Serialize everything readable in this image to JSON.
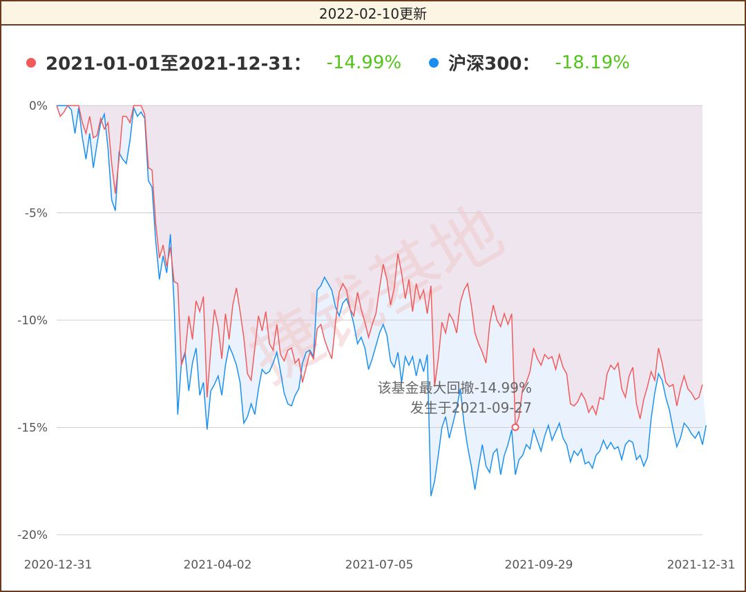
{
  "header": {
    "title": "2022-02-10更新"
  },
  "legend": {
    "fund_label": "2021-01-01至2021-12-31：",
    "fund_value": "-14.99%",
    "index_label": "沪深300：",
    "index_value": "-18.19%"
  },
  "annotation": {
    "line1": "该基金最大回撤-14.99%",
    "line2": "发生于2021-09-27"
  },
  "watermark": "捷钱基地",
  "colors": {
    "fund": "#f05a5a",
    "index": "#1a8ff0",
    "gain": "#52c41a"
  },
  "chart_data": {
    "type": "line",
    "x_ticks": [
      "2020-12-31",
      "2021-04-02",
      "2021-07-05",
      "2021-09-29",
      "2021-12-31"
    ],
    "y_ticks": [
      "0%",
      "-5%",
      "-10%",
      "-15%",
      "-20%"
    ],
    "ylim": [
      -20,
      0
    ],
    "grid": true,
    "legend_position": "top-left",
    "max_drawdown_point": {
      "date": "2021-09-27",
      "value": -14.99
    },
    "series": [
      {
        "name": "2021-01-01至2021-12-31",
        "values": [
          0,
          -0.5,
          -0.3,
          0,
          0,
          0,
          0,
          -0.8,
          -1.3,
          -0.5,
          -1.5,
          -1.4,
          -0.6,
          -1.1,
          -0.8,
          -2.7,
          -4.1,
          -2.5,
          -0.5,
          -0.5,
          -0.8,
          0,
          0,
          0,
          -0.4,
          -2.9,
          -3.0,
          -5.5,
          -7.1,
          -6.5,
          -7.5,
          -6.6,
          -8.2,
          -8.3,
          -12.1,
          -11.6,
          -9.8,
          -10.9,
          -9.1,
          -9.6,
          -8.9,
          -13.6,
          -11.4,
          -9.5,
          -10.3,
          -11.8,
          -9.7,
          -10.9,
          -9.3,
          -8.5,
          -9.6,
          -10.8,
          -12.5,
          -12.8,
          -11.3,
          -9.8,
          -10.5,
          -9.6,
          -11.1,
          -11.4,
          -10.2,
          -11.6,
          -11.9,
          -11.4,
          -11.3,
          -12.0,
          -11.8,
          -12.9,
          -12.2,
          -11.5,
          -11.8,
          -10.4,
          -10.2,
          -10.9,
          -11.4,
          -11.8,
          -10.1,
          -8.7,
          -8.3,
          -8.6,
          -9.5,
          -9.8,
          -8.7,
          -9.5,
          -10.1,
          -10.8,
          -10.2,
          -9.7,
          -8.5,
          -7.4,
          -8.1,
          -9.3,
          -8.5,
          -6.9,
          -7.8,
          -9.0,
          -8.1,
          -9.6,
          -8.3,
          -9.0,
          -8.6,
          -9.7,
          -8.4,
          -13.1,
          -11.8,
          -10.1,
          -10.6,
          -9.7,
          -10.0,
          -10.6,
          -9.2,
          -8.6,
          -8.3,
          -9.3,
          -10.6,
          -11.1,
          -11.5,
          -12.0,
          -10.2,
          -9.3,
          -10.0,
          -10.3,
          -9.7,
          -10.2,
          -9.7,
          -14.99,
          -14.5,
          -13.2,
          -12.9,
          -12.4,
          -11.3,
          -11.8,
          -12.1,
          -11.6,
          -11.8,
          -11.7,
          -12.3,
          -11.6,
          -12.2,
          -12.5,
          -13.9,
          -14.0,
          -13.8,
          -13.4,
          -13.7,
          -14.3,
          -14.0,
          -14.4,
          -13.6,
          -13.7,
          -12.5,
          -12.1,
          -12.3,
          -12.0,
          -13.2,
          -13.6,
          -12.6,
          -12.2,
          -13.9,
          -14.6,
          -13.7,
          -13.1,
          -12.4,
          -12.8,
          -11.3,
          -12.0,
          -12.9,
          -13.1,
          -13.0,
          -14.0,
          -13.2,
          -12.6,
          -13.2,
          -13.4,
          -13.7,
          -13.6,
          -13.0
        ]
      },
      {
        "name": "沪深300",
        "values": [
          0,
          0,
          0,
          0,
          -0.2,
          -1.3,
          -0.1,
          -1.5,
          -2.5,
          -1.3,
          -2.9,
          -1.8,
          -0.8,
          -0.4,
          -2.0,
          -4.4,
          -4.9,
          -2.2,
          -2.5,
          -2.7,
          -1.6,
          -0.1,
          -0.5,
          -0.3,
          -0.6,
          -3.5,
          -3.8,
          -6.3,
          -8.1,
          -7.0,
          -7.8,
          -6.0,
          -9.2,
          -14.4,
          -12.0,
          -11.5,
          -13.3,
          -12.0,
          -11.3,
          -13.5,
          -12.9,
          -15.1,
          -13.3,
          -13.0,
          -12.6,
          -13.5,
          -12.1,
          -11.2,
          -11.6,
          -12.1,
          -12.9,
          -14.8,
          -14.5,
          -13.9,
          -14.4,
          -13.2,
          -12.3,
          -12.5,
          -12.4,
          -12.0,
          -11.5,
          -12.4,
          -13.4,
          -13.9,
          -14.0,
          -13.5,
          -13.2,
          -12.0,
          -11.5,
          -11.4,
          -11.7,
          -8.6,
          -8.4,
          -8.0,
          -8.3,
          -8.6,
          -9.4,
          -9.8,
          -9.2,
          -9.0,
          -9.5,
          -10.2,
          -11.1,
          -10.8,
          -11.3,
          -12.3,
          -11.8,
          -11.2,
          -10.6,
          -10.2,
          -10.7,
          -11.9,
          -12.2,
          -11.5,
          -12.9,
          -11.7,
          -12.1,
          -11.7,
          -12.6,
          -11.8,
          -12.4,
          -11.6,
          -18.2,
          -17.5,
          -16.3,
          -15.0,
          -14.5,
          -15.5,
          -14.8,
          -14.1,
          -13.2,
          -14.8,
          -15.9,
          -16.8,
          -17.9,
          -16.8,
          -15.8,
          -16.8,
          -17.1,
          -16.2,
          -16.0,
          -17.2,
          -16.3,
          -15.8,
          -15.1,
          -17.2,
          -16.5,
          -16.3,
          -15.8,
          -16.0,
          -15.1,
          -15.6,
          -16.1,
          -15.4,
          -14.9,
          -15.6,
          -15.2,
          -14.8,
          -15.5,
          -15.8,
          -16.6,
          -16.1,
          -16.3,
          -16.0,
          -16.7,
          -16.6,
          -16.9,
          -16.3,
          -16.1,
          -15.6,
          -16.0,
          -15.7,
          -16.0,
          -15.9,
          -16.5,
          -15.8,
          -15.6,
          -15.7,
          -16.5,
          -16.3,
          -16.8,
          -16.4,
          -14.6,
          -13.4,
          -12.5,
          -12.8,
          -13.6,
          -14.2,
          -15.1,
          -15.9,
          -15.5,
          -14.8,
          -15.0,
          -15.3,
          -15.5,
          -15.2,
          -15.8,
          -14.9
        ]
      }
    ]
  }
}
